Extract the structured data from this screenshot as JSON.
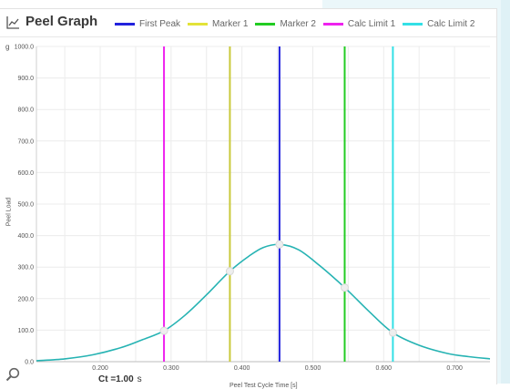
{
  "header": {
    "title": "Peel Graph",
    "icon": "chart-line-icon"
  },
  "legend": [
    {
      "name": "First Peak",
      "color": "#2222dd"
    },
    {
      "name": "Marker 1",
      "color": "#e3e338"
    },
    {
      "name": "Marker 2",
      "color": "#22cc22"
    },
    {
      "name": "Calc Limit 1",
      "color": "#ee22ee"
    },
    {
      "name": "Calc Limit 2",
      "color": "#33e0e6"
    }
  ],
  "footer": {
    "ct_text": "Ct =1.00",
    "ct_unit": "s",
    "zoom_icon": "magnifier-icon"
  },
  "chart_data": {
    "type": "line",
    "unit": "g",
    "xlabel": "Peel Test Cycle Time [s]",
    "ylabel": "Peel Load",
    "xlim": [
      0.11,
      0.75
    ],
    "ylim": [
      0,
      1000
    ],
    "x_ticks": [
      "0.200",
      "0.300",
      "0.400",
      "0.500",
      "0.600",
      "0.700"
    ],
    "x_tick_values": [
      0.2,
      0.3,
      0.4,
      0.5,
      0.6,
      0.7
    ],
    "y_ticks": [
      "0.0",
      "100.0",
      "200.0",
      "300.0",
      "400.0",
      "500.0",
      "600.0",
      "700.0",
      "800.0",
      "900.0",
      "1000.0"
    ],
    "y_tick_values": [
      0,
      100,
      200,
      300,
      400,
      500,
      600,
      700,
      800,
      900,
      1000
    ],
    "grid": true,
    "series": [
      {
        "color": "#26b3b3",
        "x": [
          0.11,
          0.15,
          0.19,
          0.23,
          0.26,
          0.29,
          0.32,
          0.35,
          0.383,
          0.41,
          0.43,
          0.453,
          0.48,
          0.51,
          0.545,
          0.58,
          0.613,
          0.65,
          0.69,
          0.72,
          0.75
        ],
        "y": [
          3,
          9,
          22,
          45,
          70,
          98,
          148,
          212,
          287,
          335,
          362,
          372,
          355,
          304,
          235,
          158,
          92,
          52,
          26,
          16,
          9
        ]
      }
    ],
    "markers": [
      {
        "name": "Calc Limit 1",
        "x": 0.29,
        "color": "#ee22ee",
        "point_y": 98
      },
      {
        "name": "Marker 1",
        "x": 0.383,
        "color": "#c9c93a",
        "point_y": 287
      },
      {
        "name": "First Peak",
        "x": 0.453,
        "color": "#2222dd",
        "point_y": 372
      },
      {
        "name": "Marker 2",
        "x": 0.545,
        "color": "#22cc22",
        "point_y": 235
      },
      {
        "name": "Calc Limit 2",
        "x": 0.613,
        "color": "#33e0e6",
        "point_y": 92
      }
    ]
  }
}
